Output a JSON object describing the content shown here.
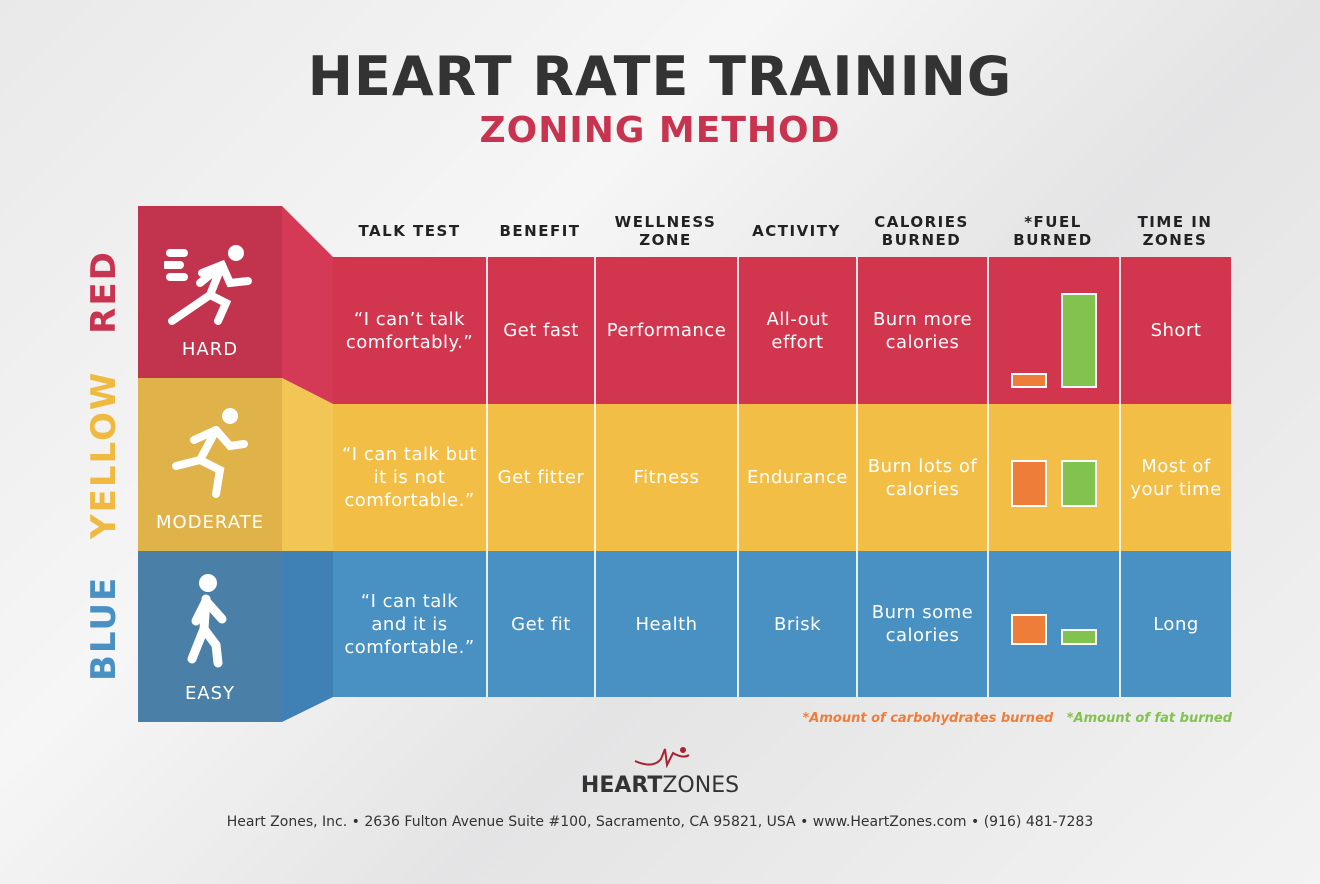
{
  "title": "HEART RATE TRAINING",
  "subtitle": "ZONING METHOD",
  "headers": [
    "TALK TEST",
    "BENEFIT",
    "WELLNESS ZONE",
    "ACTIVITY",
    "CALORIES BURNED",
    "*FUEL BURNED",
    "TIME IN ZONES"
  ],
  "zones": [
    {
      "color_name": "RED",
      "intensity": "HARD",
      "color": "#d2364f",
      "panel": "#c2344d",
      "icon": "sprinting-person-icon",
      "talk_test": "“I can’t talk comfortably.”",
      "benefit": "Get fast",
      "wellness_zone": "Performance",
      "activity": "All-out effort",
      "calories": "Burn more calories",
      "time": "Short"
    },
    {
      "color_name": "YELLOW",
      "intensity": "MODERATE",
      "color": "#f3be45",
      "panel": "#dfb24a",
      "icon": "running-person-icon",
      "talk_test": "“I can talk but it is not comfortable.”",
      "benefit": "Get fitter",
      "wellness_zone": "Fitness",
      "activity": "Endurance",
      "calories": "Burn lots of calories",
      "time": "Most of your time"
    },
    {
      "color_name": "BLUE",
      "intensity": "EASY",
      "color": "#4a91c3",
      "panel": "#4a7fa8",
      "icon": "walking-person-icon",
      "talk_test": "“I can talk and it is comfortable.”",
      "benefit": "Get fit",
      "wellness_zone": "Health",
      "activity": "Brisk",
      "calories": "Burn some calories",
      "time": "Long"
    }
  ],
  "chart_data": {
    "type": "bar",
    "categories": [
      "RED",
      "YELLOW",
      "BLUE"
    ],
    "series": [
      {
        "name": "*Amount of carbohydrates burned",
        "color": "#ef7d3a",
        "values": [
          16,
          50,
          33
        ]
      },
      {
        "name": "*Amount of fat burned",
        "color": "#82c24f",
        "values": [
          100,
          50,
          17
        ]
      }
    ]
  },
  "legend": {
    "carbs": "*Amount of carbohydrates burned",
    "fat": "*Amount of fat burned",
    "carbs_color": "#ef7d3a",
    "fat_color": "#82c24f"
  },
  "brand": {
    "bold": "HEART",
    "light": "ZONES"
  },
  "footer": "Heart Zones, Inc.  •  2636 Fulton Avenue Suite #100, Sacramento, CA 95821, USA  •  www.HeartZones.com  •  (916) 481-7283"
}
